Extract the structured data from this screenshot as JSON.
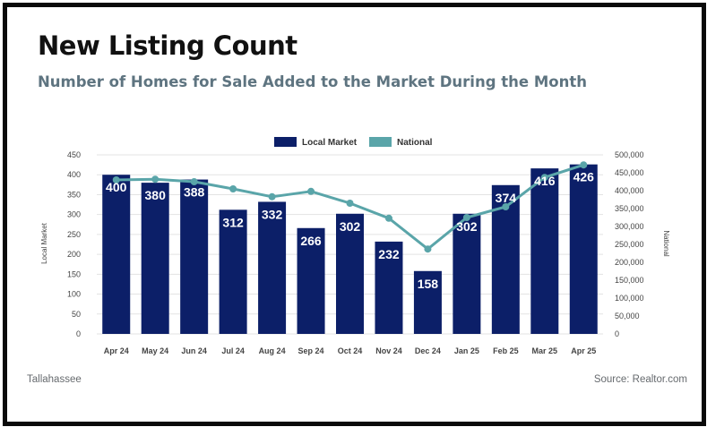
{
  "title": "New Listing Count",
  "subtitle": "Number of Homes for Sale Added to the Market During the Month",
  "footer": {
    "left": "Tallahassee",
    "right": "Source: Realtor.com"
  },
  "colors": {
    "bar": "#0c1f68",
    "line": "#5aa5a9",
    "grid": "#e3e3e3"
  },
  "chart_data": {
    "type": "bar",
    "categories": [
      "Apr 24",
      "May 24",
      "Jun 24",
      "Jul 24",
      "Aug 24",
      "Sep 24",
      "Oct 24",
      "Nov 24",
      "Dec 24",
      "Jan 25",
      "Feb 25",
      "Mar 25",
      "Apr 25"
    ],
    "series": [
      {
        "name": "Local Market",
        "type": "bar",
        "axis": "left",
        "values": [
          400,
          380,
          388,
          312,
          332,
          266,
          302,
          232,
          158,
          302,
          374,
          416,
          426
        ]
      },
      {
        "name": "National",
        "type": "line",
        "axis": "right",
        "values": [
          430000,
          432000,
          425000,
          405000,
          383000,
          398000,
          365000,
          323000,
          237000,
          325000,
          355000,
          437000,
          472000
        ]
      }
    ],
    "ylabel": "Local Market",
    "y2label": "National",
    "ylim": [
      0,
      450
    ],
    "y2lim": [
      0,
      500000
    ],
    "yticks": [
      "0",
      "50",
      "100",
      "150",
      "200",
      "250",
      "300",
      "350",
      "400",
      "450"
    ],
    "y2ticks": [
      "0",
      "50,000",
      "100,000",
      "150,000",
      "200,000",
      "250,000",
      "300,000",
      "350,000",
      "400,000",
      "450,000",
      "500,000"
    ],
    "grid": true,
    "legend": "top-center"
  }
}
